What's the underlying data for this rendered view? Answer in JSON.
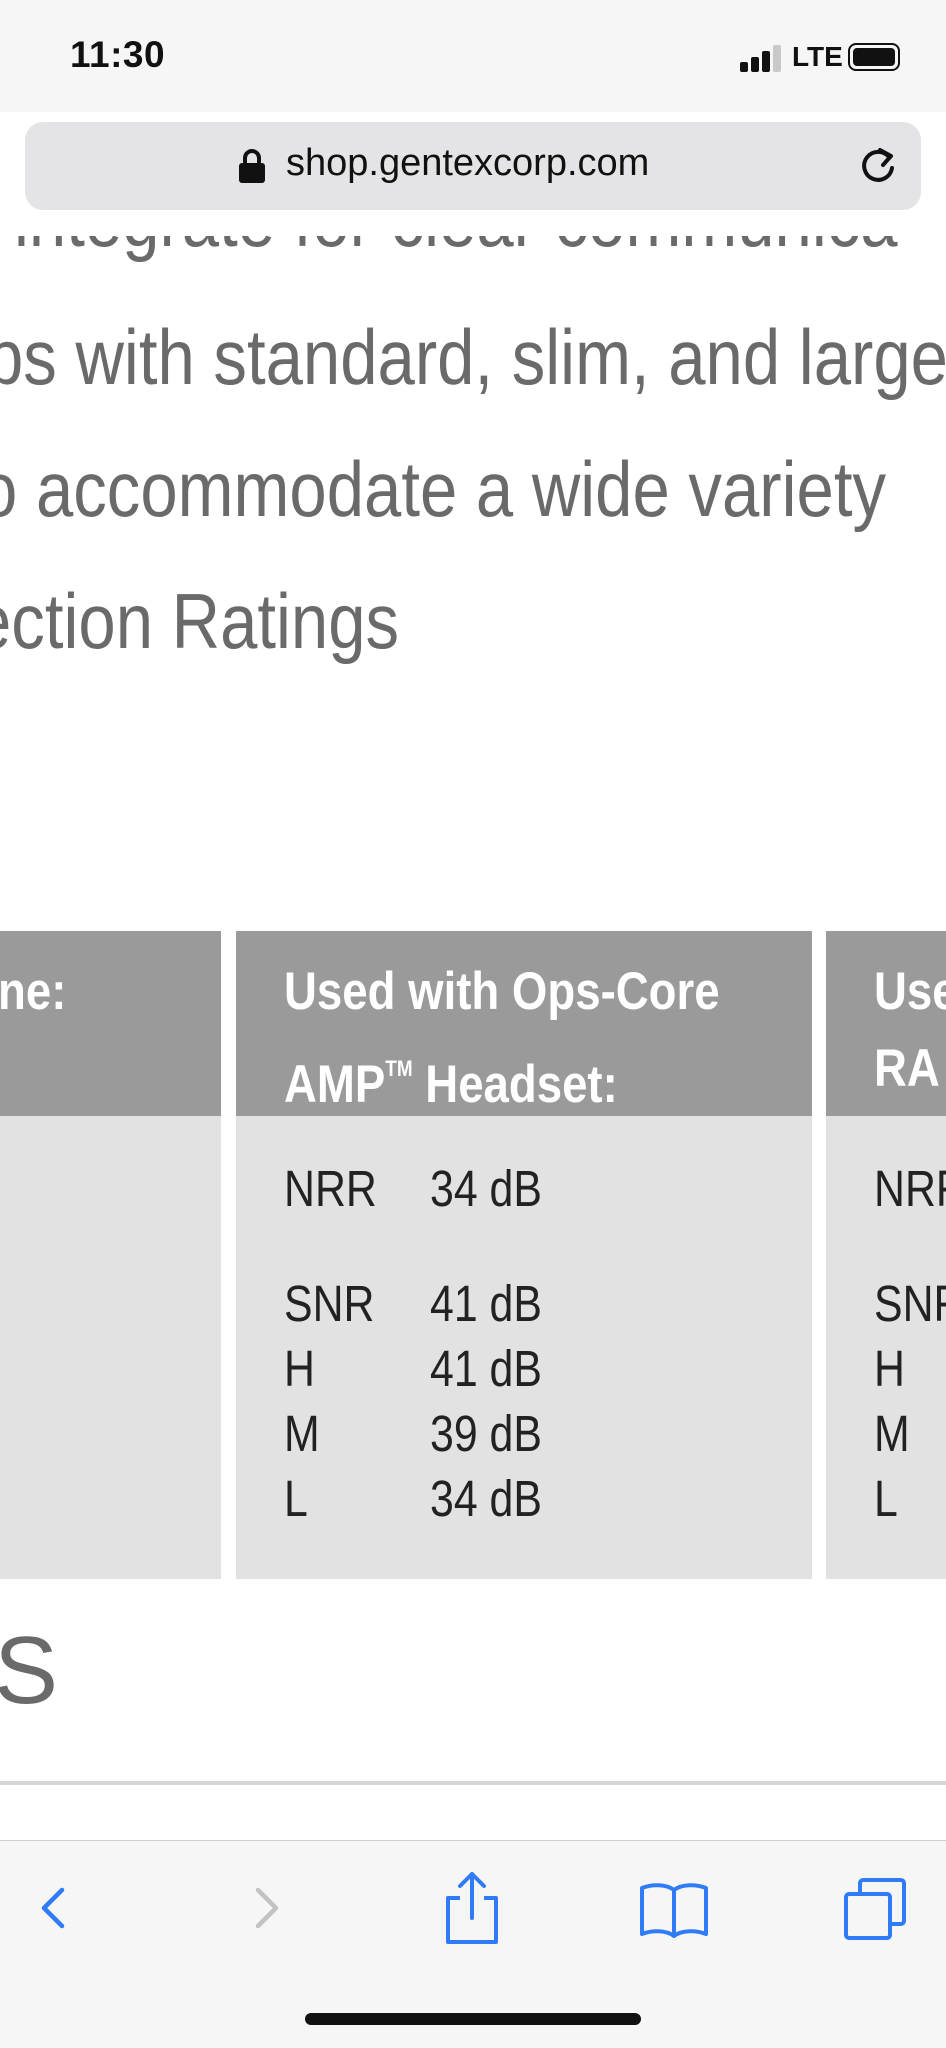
{
  "status_bar": {
    "time": "11:30",
    "network": "LTE"
  },
  "address_bar": {
    "url": "shop.gentexcorp.com"
  },
  "content": {
    "body_lines": [
      "integrate for clear communica",
      "ps with standard, slim, and large",
      "o accommodate a wide variety",
      "ection Ratings"
    ],
    "table": {
      "columns": [
        {
          "header_lines": [
            "ne:",
            ""
          ],
          "rows": []
        },
        {
          "header_lines": [
            "Used with Ops-Core",
            "AMP",
            " Headset:"
          ],
          "rows": [
            {
              "label": "NRR",
              "value": "34 dB"
            },
            {
              "label": "SNR",
              "value": "41 dB"
            },
            {
              "label": "H",
              "value": "41 dB"
            },
            {
              "label": "M",
              "value": "39 dB"
            },
            {
              "label": "L",
              "value": "34 dB"
            }
          ]
        },
        {
          "header_lines": [
            "Use",
            "RA"
          ],
          "rows": [
            {
              "label": "NRF"
            },
            {
              "label": "SNF"
            },
            {
              "label": "H"
            },
            {
              "label": "M"
            },
            {
              "label": "L"
            }
          ]
        }
      ],
      "trademark": "TM"
    },
    "next_section_letter": "S"
  },
  "toolbar": {
    "icons": [
      "back-icon",
      "forward-icon",
      "share-icon",
      "bookmarks-icon",
      "tabs-icon"
    ],
    "accent_color": "#2f7cf6",
    "disabled_color": "#c2c2c2"
  }
}
